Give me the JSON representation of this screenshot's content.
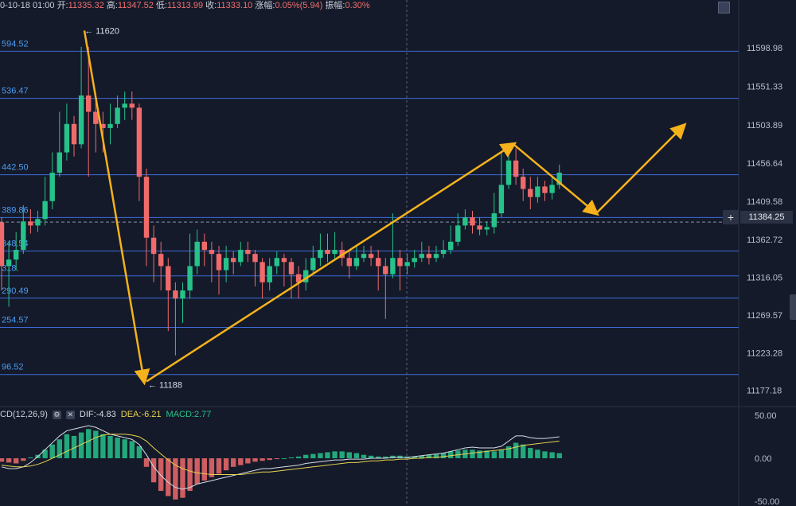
{
  "header": {
    "date_label": "0-10-18 01:00",
    "open_label": "开:",
    "open": "11335.32",
    "high_label": "高:",
    "high": "11347.52",
    "low_label": "低:",
    "low": "11313.99",
    "close_label": "收:",
    "close": "11333.10",
    "change_label": "涨幅:",
    "change": "0.05%(5.94)",
    "amplitude_label": "振幅:",
    "amplitude": "0.30%"
  },
  "price_axis": {
    "ticks": [
      "11598.98",
      "11551.33",
      "11503.89",
      "11456.64",
      "11409.58",
      "11362.72",
      "11316.05",
      "11269.57",
      "11223.28",
      "11177.18"
    ],
    "current_price": "11384.25"
  },
  "level_lines": {
    "labels": [
      "594.52",
      "536.47",
      "442.50",
      "389.86",
      "348.54",
      "318.",
      "290.49",
      "254.57",
      "96.52"
    ]
  },
  "annotations": {
    "high_marker": "← 11620",
    "low_marker": "← 11188"
  },
  "macd": {
    "title": "CD(12,26,9)",
    "dif": "DIF:-4.83",
    "dea": "DEA:-6.21",
    "macd": "MACD:2.77",
    "axis_ticks": [
      "50.00",
      "0.00",
      "-50.00"
    ]
  },
  "colors": {
    "background": "#141a2a",
    "up": "#26c28a",
    "down": "#ef6b6b",
    "level_line": "#3d6bd6",
    "arrow": "#f5b21b",
    "dea_line": "#e8d44d",
    "dif_line": "#d8dce6"
  },
  "chart_data": {
    "type": "candlestick",
    "price_range": [
      11160,
      11640
    ],
    "macd_range": [
      -50,
      50
    ],
    "candles": [
      [
        11384,
        11330,
        11390,
        11300
      ],
      [
        11330,
        11338,
        11360,
        11280
      ],
      [
        11338,
        11350,
        11372,
        11325
      ],
      [
        11350,
        11385,
        11405,
        11345
      ],
      [
        11385,
        11380,
        11400,
        11370
      ],
      [
        11380,
        11388,
        11398,
        11372
      ],
      [
        11388,
        11410,
        11440,
        11380
      ],
      [
        11410,
        11445,
        11470,
        11400
      ],
      [
        11445,
        11470,
        11520,
        11440
      ],
      [
        11470,
        11505,
        11530,
        11460
      ],
      [
        11505,
        11480,
        11515,
        11465
      ],
      [
        11480,
        11540,
        11600,
        11475
      ],
      [
        11540,
        11520,
        11600,
        11440
      ],
      [
        11520,
        11505,
        11540,
        11470
      ],
      [
        11505,
        11500,
        11520,
        11470
      ],
      [
        11500,
        11505,
        11530,
        11480
      ],
      [
        11505,
        11525,
        11540,
        11500
      ],
      [
        11525,
        11530,
        11545,
        11510
      ],
      [
        11530,
        11525,
        11545,
        11510
      ],
      [
        11525,
        11440,
        11530,
        11410
      ],
      [
        11440,
        11365,
        11450,
        11330
      ],
      [
        11365,
        11345,
        11380,
        11310
      ],
      [
        11345,
        11330,
        11360,
        11300
      ],
      [
        11330,
        11300,
        11340,
        11250
      ],
      [
        11300,
        11290,
        11310,
        11220
      ],
      [
        11290,
        11300,
        11310,
        11260
      ],
      [
        11300,
        11330,
        11370,
        11290
      ],
      [
        11330,
        11360,
        11375,
        11320
      ],
      [
        11360,
        11350,
        11370,
        11330
      ],
      [
        11350,
        11345,
        11360,
        11310
      ],
      [
        11345,
        11325,
        11355,
        11295
      ],
      [
        11325,
        11340,
        11355,
        11310
      ],
      [
        11340,
        11335,
        11348,
        11320
      ],
      [
        11335,
        11350,
        11360,
        11330
      ],
      [
        11350,
        11345,
        11360,
        11335
      ],
      [
        11345,
        11335,
        11350,
        11305
      ],
      [
        11335,
        11310,
        11340,
        11290
      ],
      [
        11310,
        11330,
        11340,
        11300
      ],
      [
        11330,
        11340,
        11348,
        11320
      ],
      [
        11340,
        11335,
        11345,
        11305
      ],
      [
        11335,
        11320,
        11340,
        11290
      ],
      [
        11320,
        11310,
        11330,
        11290
      ],
      [
        11310,
        11325,
        11340,
        11300
      ],
      [
        11325,
        11340,
        11355,
        11320
      ],
      [
        11340,
        11350,
        11370,
        11330
      ],
      [
        11350,
        11345,
        11370,
        11335
      ],
      [
        11345,
        11350,
        11372,
        11338
      ],
      [
        11350,
        11340,
        11360,
        11330
      ],
      [
        11340,
        11330,
        11350,
        11315
      ],
      [
        11330,
        11340,
        11355,
        11325
      ],
      [
        11340,
        11345,
        11355,
        11335
      ],
      [
        11345,
        11340,
        11355,
        11330
      ],
      [
        11340,
        11330,
        11350,
        11300
      ],
      [
        11330,
        11320,
        11340,
        11265
      ],
      [
        11320,
        11340,
        11395,
        11315
      ],
      [
        11340,
        11330,
        11350,
        11300
      ],
      [
        11330,
        11335,
        11345,
        11320
      ],
      [
        11335,
        11340,
        11350,
        11328
      ],
      [
        11340,
        11345,
        11360,
        11335
      ],
      [
        11345,
        11340,
        11355,
        11332
      ],
      [
        11340,
        11345,
        11355,
        11335
      ],
      [
        11345,
        11350,
        11362,
        11340
      ],
      [
        11350,
        11360,
        11380,
        11345
      ],
      [
        11360,
        11380,
        11395,
        11355
      ],
      [
        11380,
        11390,
        11400,
        11375
      ],
      [
        11390,
        11380,
        11398,
        11370
      ],
      [
        11380,
        11375,
        11390,
        11368
      ],
      [
        11375,
        11378,
        11385,
        11368
      ],
      [
        11378,
        11395,
        11420,
        11370
      ],
      [
        11395,
        11430,
        11470,
        11390
      ],
      [
        11430,
        11460,
        11480,
        11425
      ],
      [
        11460,
        11440,
        11475,
        11430
      ],
      [
        11440,
        11425,
        11450,
        11410
      ],
      [
        11425,
        11415,
        11440,
        11400
      ],
      [
        11415,
        11428,
        11440,
        11408
      ],
      [
        11428,
        11420,
        11435,
        11410
      ],
      [
        11420,
        11430,
        11440,
        11412
      ],
      [
        11430,
        11445,
        11455,
        11425
      ]
    ],
    "macd_hist": [
      -4,
      -5,
      -6,
      -3,
      1,
      4,
      10,
      16,
      22,
      28,
      26,
      30,
      34,
      32,
      28,
      26,
      24,
      22,
      20,
      14,
      -10,
      -28,
      -38,
      -44,
      -48,
      -46,
      -38,
      -30,
      -26,
      -22,
      -18,
      -14,
      -10,
      -8,
      -6,
      -4,
      -3,
      -2,
      -1,
      0,
      1,
      2,
      4,
      5,
      6,
      7,
      8,
      8,
      7,
      6,
      4,
      3,
      2,
      2,
      3,
      3,
      2,
      2,
      3,
      4,
      5,
      6,
      8,
      9,
      10,
      10,
      9,
      9,
      8,
      10,
      14,
      18,
      16,
      12,
      10,
      8,
      7,
      6
    ],
    "dif": [
      -10,
      -12,
      -12,
      -10,
      -5,
      2,
      10,
      18,
      26,
      32,
      34,
      36,
      38,
      36,
      32,
      28,
      26,
      24,
      22,
      16,
      4,
      -10,
      -20,
      -28,
      -34,
      -36,
      -34,
      -30,
      -28,
      -26,
      -24,
      -22,
      -20,
      -18,
      -16,
      -14,
      -12,
      -12,
      -11,
      -10,
      -9,
      -8,
      -6,
      -5,
      -4,
      -3,
      -2,
      -2,
      -1,
      -1,
      -1,
      0,
      0,
      0,
      1,
      1,
      1,
      2,
      3,
      4,
      5,
      6,
      8,
      10,
      12,
      13,
      12,
      12,
      12,
      14,
      20,
      26,
      26,
      24,
      23,
      23,
      24,
      25
    ],
    "dea": [
      -8,
      -9,
      -10,
      -10,
      -9,
      -7,
      -4,
      0,
      4,
      8,
      12,
      16,
      20,
      24,
      27,
      28,
      28,
      28,
      27,
      25,
      20,
      12,
      5,
      -2,
      -8,
      -12,
      -15,
      -17,
      -18,
      -19,
      -19,
      -19,
      -19,
      -19,
      -18,
      -17,
      -16,
      -16,
      -15,
      -14,
      -13,
      -12,
      -11,
      -10,
      -9,
      -8,
      -7,
      -6,
      -5,
      -5,
      -4,
      -3,
      -3,
      -2,
      -2,
      -1,
      -1,
      0,
      0,
      1,
      1,
      2,
      3,
      4,
      5,
      6,
      7,
      8,
      9,
      10,
      11,
      13,
      15,
      16,
      17,
      18,
      19,
      20
    ],
    "level_lines": [
      11594.52,
      11536.47,
      11442.5,
      11389.86,
      11348.54,
      11318,
      11290.49,
      11254.57,
      11196.52
    ],
    "current_price": 11384.25,
    "high_marker": 11620,
    "low_marker": 11188,
    "arrows": [
      [
        [
          106,
          11620
        ],
        [
          181,
          11188
        ]
      ],
      [
        [
          184,
          11188
        ],
        [
          645,
          11480
        ]
      ],
      [
        [
          645,
          11480
        ],
        [
          749,
          11395
        ]
      ],
      [
        [
          749,
          11395
        ],
        [
          859,
          11503
        ]
      ]
    ],
    "vertical_crosshair_x": 511
  }
}
